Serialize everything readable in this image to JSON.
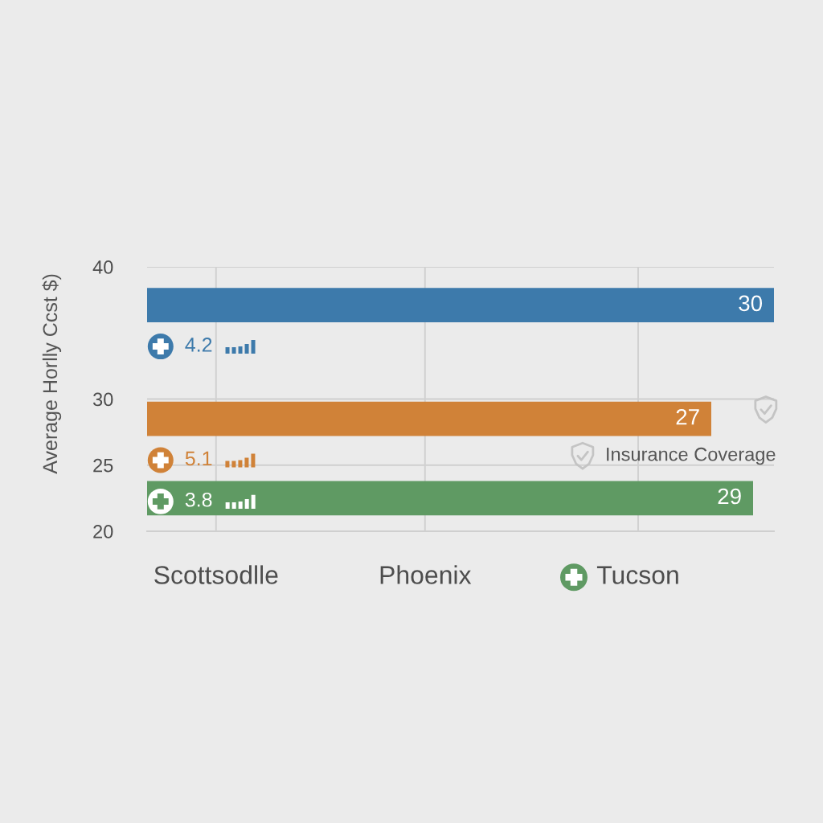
{
  "chart_data": {
    "type": "bar",
    "orientation": "horizontal",
    "ylabel": "Average Horlly Ccst $)",
    "x": [
      37.1,
      28.5,
      22.5
    ],
    "values": [
      30,
      27,
      29
    ],
    "colors": [
      "#3d7aab",
      "#d08238",
      "#5f9a63"
    ],
    "data_labels": true,
    "xlim": [
      0,
      30
    ],
    "ylim": [
      20,
      40
    ],
    "yticks": [
      40,
      30,
      25,
      20
    ],
    "grid": "y",
    "tick_labels": "y",
    "ref_lines": [
      {
        "axis": "x",
        "value": 3.3,
        "label": "Scottsodlle",
        "color": "#d0d0d0"
      },
      {
        "axis": "x",
        "value": 13.3,
        "label": "Phoenix",
        "color": "#d0d0d0"
      },
      {
        "axis": "x",
        "value": 23.5,
        "label": "Tucson",
        "color": "#d0d0d0"
      }
    ],
    "annotations": [
      "4.2",
      "5.1",
      "3.8",
      "Insurance Coverage"
    ]
  }
}
